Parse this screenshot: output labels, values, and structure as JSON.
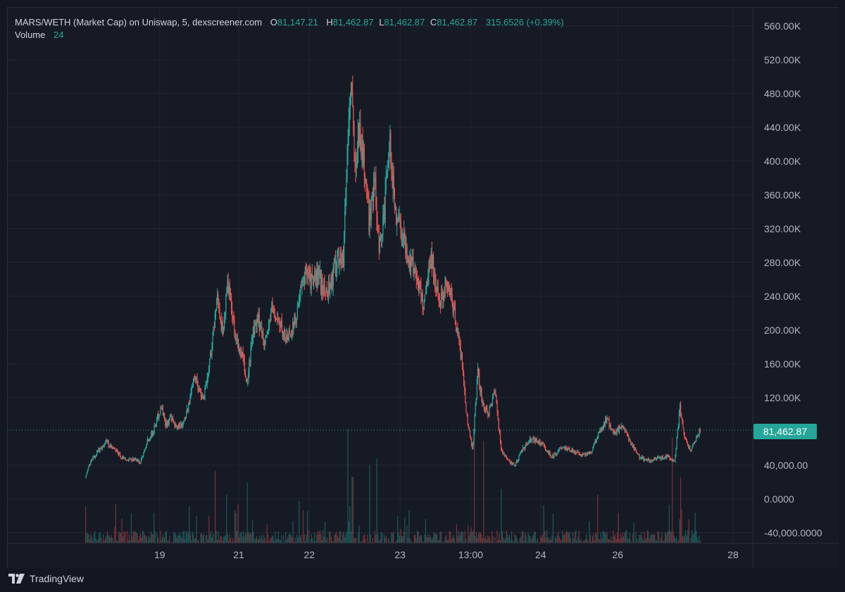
{
  "legend": {
    "title": "MARS/WETH (Market Cap) on Uniswap, 5, dexscreener.com",
    "open_label": "O",
    "open_value": "81,147.21",
    "high_label": "H",
    "high_value": "81,462.87",
    "low_label": "L",
    "low_value": "81,462.87",
    "close_label": "C",
    "close_value": "81,462.87",
    "change": "315.6526 (+0.39%)",
    "volume_label": "Volume",
    "volume_value": "24"
  },
  "current_price_label": "81,462.87",
  "footer": {
    "brand": "TradingView",
    "logo_icon": "tradingview-logo-icon"
  },
  "colors": {
    "up": "#26a69a",
    "down": "#ef5350",
    "background": "#161a25",
    "grid": "#232632"
  },
  "chart_data": {
    "type": "candlestick",
    "y_ticks": [
      {
        "value": 560000,
        "label": "560.00K"
      },
      {
        "value": 520000,
        "label": "520.00K"
      },
      {
        "value": 480000,
        "label": "480.00K"
      },
      {
        "value": 440000,
        "label": "440.00K"
      },
      {
        "value": 400000,
        "label": "400.00K"
      },
      {
        "value": 360000,
        "label": "360.00K"
      },
      {
        "value": 320000,
        "label": "320.00K"
      },
      {
        "value": 280000,
        "label": "280.00K"
      },
      {
        "value": 240000,
        "label": "240.00K"
      },
      {
        "value": 200000,
        "label": "200.00K"
      },
      {
        "value": 160000,
        "label": "160.00K"
      },
      {
        "value": 120000,
        "label": "120.00K"
      },
      {
        "value": 40000,
        "label": "40,000.00"
      },
      {
        "value": 0,
        "label": "0.0000"
      },
      {
        "value": -40000,
        "label": "-40,000.0000"
      }
    ],
    "x_ticks": [
      {
        "label": "19",
        "t": 0.115
      },
      {
        "label": "21",
        "t": 0.237
      },
      {
        "label": "22",
        "t": 0.346
      },
      {
        "label": "23",
        "t": 0.486
      },
      {
        "label": "13:00",
        "t": 0.595
      },
      {
        "label": "24",
        "t": 0.703
      },
      {
        "label": "26",
        "t": 0.822
      },
      {
        "label": "28",
        "t": 1.0
      }
    ],
    "y_range": [
      -50000,
      580000
    ],
    "current_price": 81462.87,
    "series": [
      {
        "t": 0.0,
        "v": 25000
      },
      {
        "t": 0.006,
        "v": 40000
      },
      {
        "t": 0.012,
        "v": 48000
      },
      {
        "t": 0.018,
        "v": 55000
      },
      {
        "t": 0.026,
        "v": 62000
      },
      {
        "t": 0.033,
        "v": 68000
      },
      {
        "t": 0.038,
        "v": 62000
      },
      {
        "t": 0.046,
        "v": 58000
      },
      {
        "t": 0.055,
        "v": 50000
      },
      {
        "t": 0.065,
        "v": 45000
      },
      {
        "t": 0.075,
        "v": 48000
      },
      {
        "t": 0.085,
        "v": 43000
      },
      {
        "t": 0.095,
        "v": 68000
      },
      {
        "t": 0.105,
        "v": 80000
      },
      {
        "t": 0.112,
        "v": 98000
      },
      {
        "t": 0.118,
        "v": 110000
      },
      {
        "t": 0.124,
        "v": 88000
      },
      {
        "t": 0.132,
        "v": 95000
      },
      {
        "t": 0.14,
        "v": 84000
      },
      {
        "t": 0.15,
        "v": 90000
      },
      {
        "t": 0.16,
        "v": 110000
      },
      {
        "t": 0.168,
        "v": 150000
      },
      {
        "t": 0.175,
        "v": 130000
      },
      {
        "t": 0.182,
        "v": 120000
      },
      {
        "t": 0.19,
        "v": 150000
      },
      {
        "t": 0.198,
        "v": 200000
      },
      {
        "t": 0.205,
        "v": 240000
      },
      {
        "t": 0.212,
        "v": 195000
      },
      {
        "t": 0.22,
        "v": 255000
      },
      {
        "t": 0.228,
        "v": 210000
      },
      {
        "t": 0.235,
        "v": 180000
      },
      {
        "t": 0.242,
        "v": 170000
      },
      {
        "t": 0.25,
        "v": 135000
      },
      {
        "t": 0.258,
        "v": 195000
      },
      {
        "t": 0.268,
        "v": 210000
      },
      {
        "t": 0.278,
        "v": 185000
      },
      {
        "t": 0.288,
        "v": 225000
      },
      {
        "t": 0.298,
        "v": 210000
      },
      {
        "t": 0.31,
        "v": 190000
      },
      {
        "t": 0.322,
        "v": 205000
      },
      {
        "t": 0.332,
        "v": 240000
      },
      {
        "t": 0.342,
        "v": 275000
      },
      {
        "t": 0.35,
        "v": 255000
      },
      {
        "t": 0.36,
        "v": 265000
      },
      {
        "t": 0.37,
        "v": 245000
      },
      {
        "t": 0.38,
        "v": 255000
      },
      {
        "t": 0.39,
        "v": 290000
      },
      {
        "t": 0.398,
        "v": 280000
      },
      {
        "t": 0.405,
        "v": 420000
      },
      {
        "t": 0.41,
        "v": 500000
      },
      {
        "t": 0.416,
        "v": 390000
      },
      {
        "t": 0.422,
        "v": 440000
      },
      {
        "t": 0.43,
        "v": 400000
      },
      {
        "t": 0.438,
        "v": 330000
      },
      {
        "t": 0.446,
        "v": 380000
      },
      {
        "t": 0.454,
        "v": 300000
      },
      {
        "t": 0.462,
        "v": 340000
      },
      {
        "t": 0.47,
        "v": 420000
      },
      {
        "t": 0.478,
        "v": 345000
      },
      {
        "t": 0.488,
        "v": 320000
      },
      {
        "t": 0.498,
        "v": 285000
      },
      {
        "t": 0.51,
        "v": 270000
      },
      {
        "t": 0.522,
        "v": 230000
      },
      {
        "t": 0.534,
        "v": 290000
      },
      {
        "t": 0.546,
        "v": 230000
      },
      {
        "t": 0.558,
        "v": 260000
      },
      {
        "t": 0.57,
        "v": 220000
      },
      {
        "t": 0.582,
        "v": 160000
      },
      {
        "t": 0.59,
        "v": 90000
      },
      {
        "t": 0.598,
        "v": 60000
      },
      {
        "t": 0.606,
        "v": 150000
      },
      {
        "t": 0.614,
        "v": 110000
      },
      {
        "t": 0.622,
        "v": 100000
      },
      {
        "t": 0.632,
        "v": 130000
      },
      {
        "t": 0.642,
        "v": 60000
      },
      {
        "t": 0.652,
        "v": 45000
      },
      {
        "t": 0.664,
        "v": 40000
      },
      {
        "t": 0.676,
        "v": 60000
      },
      {
        "t": 0.69,
        "v": 72000
      },
      {
        "t": 0.705,
        "v": 65000
      },
      {
        "t": 0.72,
        "v": 50000
      },
      {
        "t": 0.735,
        "v": 60000
      },
      {
        "t": 0.75,
        "v": 58000
      },
      {
        "t": 0.765,
        "v": 52000
      },
      {
        "t": 0.78,
        "v": 55000
      },
      {
        "t": 0.795,
        "v": 80000
      },
      {
        "t": 0.805,
        "v": 95000
      },
      {
        "t": 0.815,
        "v": 78000
      },
      {
        "t": 0.828,
        "v": 85000
      },
      {
        "t": 0.84,
        "v": 70000
      },
      {
        "t": 0.855,
        "v": 50000
      },
      {
        "t": 0.87,
        "v": 45000
      },
      {
        "t": 0.885,
        "v": 48000
      },
      {
        "t": 0.9,
        "v": 50000
      },
      {
        "t": 0.91,
        "v": 45000
      },
      {
        "t": 0.918,
        "v": 110000
      },
      {
        "t": 0.926,
        "v": 70000
      },
      {
        "t": 0.934,
        "v": 58000
      },
      {
        "t": 0.942,
        "v": 70000
      },
      {
        "t": 0.95,
        "v": 81462
      }
    ],
    "volume_spikes": [
      {
        "t": 0.405,
        "v": 0.95
      },
      {
        "t": 0.412,
        "v": 0.55
      },
      {
        "t": 0.438,
        "v": 0.65
      },
      {
        "t": 0.45,
        "v": 0.7
      },
      {
        "t": 0.2,
        "v": 0.6
      },
      {
        "t": 0.218,
        "v": 0.4
      },
      {
        "t": 0.25,
        "v": 0.5
      },
      {
        "t": 0.6,
        "v": 0.9
      },
      {
        "t": 0.614,
        "v": 0.85
      },
      {
        "t": 0.642,
        "v": 0.45
      },
      {
        "t": 0.906,
        "v": 0.88
      },
      {
        "t": 0.918,
        "v": 0.55
      },
      {
        "t": 0.79,
        "v": 0.4
      },
      {
        "t": 0.16,
        "v": 0.3
      },
      {
        "t": 0.33,
        "v": 0.35
      }
    ]
  }
}
